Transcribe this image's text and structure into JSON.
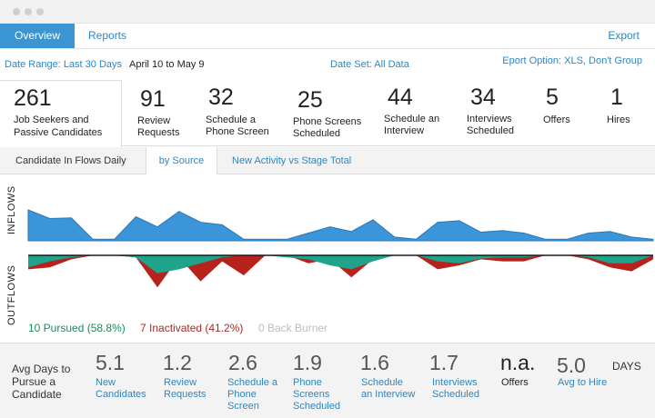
{
  "nav": {
    "tabs": [
      {
        "label": "Overview",
        "active": true
      },
      {
        "label": "Reports",
        "active": false
      }
    ],
    "export_label": "Export"
  },
  "filters": {
    "date_range_label": "Date Range: Last 30 Days",
    "date_span": "April 10 to May 9",
    "date_set_label": "Date Set: All Data",
    "export_option_label": "Eport Option: XLS, Don't Group"
  },
  "metrics": [
    {
      "value": "261",
      "label": [
        "Job Seekers and",
        "Passive Candidates"
      ]
    },
    {
      "value": "91",
      "label": [
        "Review",
        "Requests"
      ]
    },
    {
      "value": "32",
      "label": [
        "Schedule a",
        "Phone Screen"
      ]
    },
    {
      "value": "25",
      "label": [
        "Phone Screens",
        "Scheduled"
      ]
    },
    {
      "value": "44",
      "label": [
        "Schedule an",
        "Interview"
      ]
    },
    {
      "value": "34",
      "label": [
        "Interviews",
        "Scheduled"
      ]
    },
    {
      "value": "5",
      "label": [
        "Offers"
      ]
    },
    {
      "value": "1",
      "label": [
        "Hires"
      ]
    }
  ],
  "subtabs": [
    {
      "label": "Candidate In Flows Daily",
      "active": false
    },
    {
      "label": "by Source",
      "active": true
    },
    {
      "label": "New Activity vs Stage Total",
      "active": false
    }
  ],
  "chart_data": {
    "type": "area",
    "inflows_label": "INFLOWS",
    "outflows_label": "OUTFLOWS",
    "colors": {
      "inflow": "#3a96d8",
      "pursued": "#1fa38a",
      "inactivated": "#b8221c",
      "back_burner": "#c8c8c8"
    },
    "inflows": [
      1.0,
      0.72,
      0.74,
      0.05,
      0.05,
      0.78,
      0.45,
      0.95,
      0.6,
      0.52,
      0.05,
      0.05,
      0.05,
      0.25,
      0.45,
      0.3,
      0.68,
      0.12,
      0.05,
      0.6,
      0.65,
      0.28,
      0.33,
      0.25,
      0.05,
      0.05,
      0.25,
      0.3,
      0.12,
      0.05
    ],
    "outflows_pursued": [
      0.3,
      0.15,
      0.05,
      0,
      0,
      0.05,
      0.45,
      0.35,
      0.2,
      0.05,
      0,
      0,
      0.05,
      0.1,
      0.25,
      0.35,
      0.15,
      0,
      0,
      0.15,
      0.2,
      0.08,
      0.05,
      0.05,
      0,
      0,
      0.05,
      0.2,
      0.2,
      0
    ],
    "outflows_inactivated": [
      0.35,
      0.3,
      0.1,
      0,
      0,
      0.05,
      0.8,
      0.05,
      0.65,
      0.15,
      0.5,
      0,
      0,
      0.2,
      0.1,
      0.55,
      0.1,
      0,
      0,
      0.35,
      0.25,
      0.1,
      0.15,
      0.15,
      0,
      0,
      0.1,
      0.3,
      0.4,
      0.1
    ],
    "legend": [
      {
        "label": "10 Pursued (58.8%)",
        "color": "#1f8a5a"
      },
      {
        "label": "7 Inactivated (41.2%)",
        "color": "#a52a2a"
      },
      {
        "label": "0 Back Burner",
        "color": "#bdbdbd"
      }
    ]
  },
  "avg_days": {
    "title": [
      "Avg Days to",
      "Pursue a",
      "Candidate"
    ],
    "unit": "DAYS",
    "items": [
      {
        "value": "5.1",
        "label": [
          "New",
          "Candidates"
        ]
      },
      {
        "value": "1.2",
        "label": [
          "Review",
          "Requests"
        ]
      },
      {
        "value": "2.6",
        "label": [
          "Schedule a",
          "Phone",
          "Screen"
        ]
      },
      {
        "value": "1.9",
        "label": [
          "Phone",
          "Screens",
          "Scheduled"
        ]
      },
      {
        "value": "1.6",
        "label": [
          "Schedule",
          "an Interview"
        ]
      },
      {
        "value": "1.7",
        "label": [
          "Interviews",
          "Scheduled"
        ]
      },
      {
        "value": "n.a.",
        "label": [
          "Offers"
        ]
      },
      {
        "value": "5.0",
        "label": [
          "Avg to Hire"
        ]
      }
    ]
  }
}
